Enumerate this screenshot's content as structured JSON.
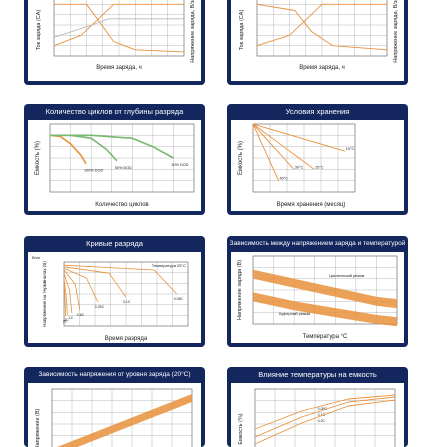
{
  "colors": {
    "card": "#13275e",
    "grid": "#9a9a9a",
    "orange": "#e8913a",
    "green": "#79b870",
    "text": "#1a1a1a"
  },
  "cards": [
    {
      "id": "charge-a",
      "title": "",
      "ylabel": "Ток заряда (CA)",
      "y2label": "Напряжение заряда, В/эл",
      "xlabel": "Время заряда, ч"
    },
    {
      "id": "charge-b",
      "title": "",
      "ylabel": "Ток заряда (CA)",
      "y2label": "Напряжение заряда, В/эл",
      "xlabel": "Время заряда, ч"
    },
    {
      "id": "cycles",
      "title": "Количество циклов от глубины разряда",
      "ylabel": "Емкость (%)",
      "xlabel": "Количество циклов",
      "series_labels": [
        "100% DOD",
        "50% DOD",
        "30% DOD"
      ]
    },
    {
      "id": "storage",
      "title": "Условия хранения",
      "ylabel": "Емкость (%)",
      "xlabel": "Время хранения (месяц)",
      "series_labels": [
        "40°C",
        "30°C",
        "25°C",
        "10°C"
      ]
    },
    {
      "id": "discharge",
      "title": "Кривые разряда",
      "ylabel": "Напряжение на терминалах (В)",
      "xlabel": "Время разряда",
      "annotation": "Температура 25°C",
      "y_unit": "В/эл",
      "curve_labels": [
        "3C",
        "2C",
        "1C",
        "0.6C",
        "0.25C",
        "0.1C",
        "0.05C"
      ]
    },
    {
      "id": "voltage-temp",
      "title": "Зависимость между напряжением заряда и температурой",
      "ylabel": "Напряжение заряда (В)",
      "xlabel": "Температура °C",
      "notes": [
        "Циклический режим",
        "Буферный режим"
      ]
    },
    {
      "id": "voltage-level",
      "title": "Зависимость напряжения от уровня заряда (20°C)",
      "ylabel": "Напряжение (В)"
    },
    {
      "id": "temp-capacity",
      "title": "Влияние температуры на емкость",
      "ylabel": "Емкость (%)",
      "series_labels": [
        "0.05C",
        "0.1C",
        "0.2C"
      ]
    }
  ],
  "chart_data": [
    {
      "type": "line",
      "id": "charge-a",
      "series": [
        {
          "values": [
            [
              0,
              0.05
            ],
            [
              5,
              0.1
            ],
            [
              9,
              0.2
            ],
            [
              11,
              0.25
            ],
            [
              13,
              0.25
            ],
            [
              24,
              0.25
            ]
          ]
        },
        {
          "values": [
            [
              0,
              0.25
            ],
            [
              6,
              0.25
            ],
            [
              8,
              0.18
            ],
            [
              11,
              0.07
            ],
            [
              15,
              0.03
            ],
            [
              24,
              0.02
            ]
          ]
        },
        {
          "values": [
            [
              0,
              2.15
            ],
            [
              7,
              2.25
            ],
            [
              10,
              2.3
            ],
            [
              24,
              2.3
            ]
          ]
        }
      ],
      "xlim": [
        0,
        24
      ],
      "ylim": [
        0,
        0.3
      ]
    },
    {
      "type": "line",
      "id": "charge-b",
      "series": [
        {
          "values": [
            [
              0,
              0.05
            ],
            [
              6,
              0.1
            ],
            [
              10,
              0.2
            ],
            [
              12,
              0.25
            ],
            [
              24,
              0.25
            ]
          ]
        },
        {
          "values": [
            [
              0,
              0.25
            ],
            [
              7,
              0.22
            ],
            [
              10,
              0.12
            ],
            [
              14,
              0.05
            ],
            [
              24,
              0.03
            ]
          ]
        }
      ],
      "xlim": [
        0,
        24
      ],
      "ylim": [
        0,
        0.3
      ]
    },
    {
      "type": "line",
      "id": "cycles",
      "series": [
        {
          "name": "100% DOD",
          "values": [
            [
              0,
              100
            ],
            [
              100,
              98
            ],
            [
              200,
              85
            ],
            [
              300,
              65
            ],
            [
              350,
              50
            ]
          ]
        },
        {
          "name": "50% DOD",
          "values": [
            [
              0,
              100
            ],
            [
              200,
              100
            ],
            [
              400,
              95
            ],
            [
              550,
              75
            ],
            [
              650,
              55
            ]
          ]
        },
        {
          "name": "30% DOD",
          "values": [
            [
              0,
              100
            ],
            [
              400,
              100
            ],
            [
              800,
              95
            ],
            [
              1000,
              80
            ],
            [
              1200,
              60
            ]
          ]
        }
      ],
      "xlim": [
        0,
        1400
      ],
      "ylim": [
        0,
        120
      ],
      "grid": true
    },
    {
      "type": "line",
      "id": "storage",
      "series": [
        {
          "name": "40°C",
          "values": [
            [
              0,
              100
            ],
            [
              1,
              90
            ],
            [
              2,
              80
            ],
            [
              3,
              70
            ],
            [
              4,
              60
            ],
            [
              5,
              50
            ]
          ]
        },
        {
          "name": "30°C",
          "values": [
            [
              0,
              100
            ],
            [
              2,
              90
            ],
            [
              4,
              80
            ],
            [
              6,
              70
            ],
            [
              8,
              60
            ]
          ]
        },
        {
          "name": "25°C",
          "values": [
            [
              0,
              100
            ],
            [
              3,
              90
            ],
            [
              6,
              80
            ],
            [
              9,
              70
            ],
            [
              12,
              60
            ]
          ]
        },
        {
          "name": "10°C",
          "values": [
            [
              0,
              100
            ],
            [
              6,
              92
            ],
            [
              12,
              84
            ],
            [
              18,
              76
            ]
          ]
        }
      ],
      "xlim": [
        0,
        20
      ],
      "ylim": [
        40,
        100
      ],
      "grid": true
    },
    {
      "type": "line",
      "id": "discharge",
      "series": [
        {
          "name": "3C",
          "values": [
            [
              0,
              11.8
            ],
            [
              2,
              10.5
            ],
            [
              3,
              9.6
            ]
          ]
        },
        {
          "name": "2C",
          "values": [
            [
              0,
              12
            ],
            [
              4,
              10.8
            ],
            [
              6,
              9.7
            ]
          ]
        },
        {
          "name": "1C",
          "values": [
            [
              0,
              12.3
            ],
            [
              10,
              11.2
            ],
            [
              14,
              9.8
            ]
          ]
        },
        {
          "name": "0.6C",
          "values": [
            [
              0,
              12.5
            ],
            [
              20,
              11.6
            ],
            [
              28,
              10
            ]
          ]
        },
        {
          "name": "0.25C",
          "values": [
            [
              0,
              12.6
            ],
            [
              40,
              12
            ],
            [
              60,
              10.5
            ]
          ]
        },
        {
          "name": "0.1C",
          "values": [
            [
              0,
              12.7
            ],
            [
              80,
              12.3
            ],
            [
              110,
              10.8
            ]
          ]
        },
        {
          "name": "0.05C",
          "values": [
            [
              0,
              12.8
            ],
            [
              160,
              12.5
            ],
            [
              200,
              11
            ]
          ]
        }
      ],
      "xlim": [
        0,
        220
      ],
      "ylim": [
        9,
        13
      ]
    },
    {
      "type": "area",
      "id": "voltage-temp",
      "series": [
        {
          "name": "Циклический режим",
          "values": [
            [
              -20,
              15.4
            ],
            [
              0,
              15
            ],
            [
              20,
              14.6
            ],
            [
              40,
              14.2
            ],
            [
              50,
              14.1
            ]
          ]
        },
        {
          "name": "Буферный режим",
          "values": [
            [
              -20,
              14.4
            ],
            [
              0,
              14
            ],
            [
              20,
              13.7
            ],
            [
              40,
              13.4
            ],
            [
              50,
              13.3
            ]
          ]
        }
      ],
      "xlim": [
        -20,
        50
      ],
      "ylim": [
        13,
        16
      ]
    },
    {
      "type": "line",
      "id": "voltage-level",
      "series": [
        {
          "values": [
            [
              0,
              11.8
            ],
            [
              100,
              12.9
            ]
          ]
        }
      ],
      "xlim": [
        0,
        100
      ],
      "ylim": [
        11.6,
        13
      ]
    },
    {
      "type": "line",
      "id": "temp-capacity",
      "series": [
        {
          "name": "0.05C",
          "values": [
            [
              -20,
              70
            ],
            [
              0,
              88
            ],
            [
              20,
              100
            ],
            [
              40,
              104
            ]
          ]
        },
        {
          "name": "0.1C",
          "values": [
            [
              -20,
              62
            ],
            [
              0,
              82
            ],
            [
              20,
              97
            ],
            [
              40,
              102
            ]
          ]
        },
        {
          "name": "0.2C",
          "values": [
            [
              -20,
              55
            ],
            [
              0,
              76
            ],
            [
              20,
              93
            ],
            [
              40,
              99
            ]
          ]
        }
      ],
      "xlim": [
        -20,
        40
      ],
      "ylim": [
        40,
        110
      ]
    }
  ]
}
